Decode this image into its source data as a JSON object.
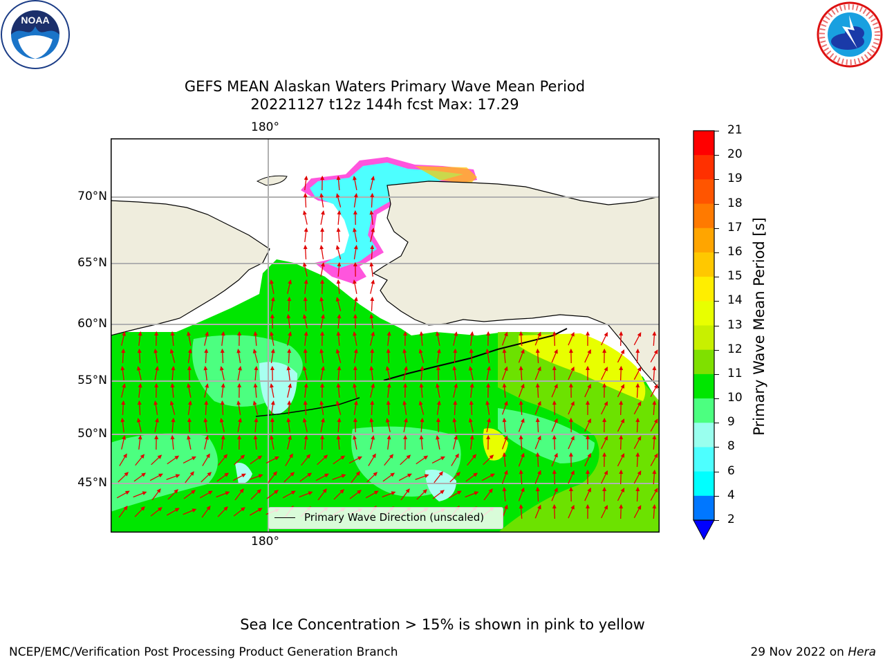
{
  "title": {
    "line1": "GEFS MEAN Alaskan Waters Primary Wave Mean Period",
    "line2": "20221127 t12z 144h fcst   Max: 17.29"
  },
  "map": {
    "lat_labels": [
      "70°N",
      "65°N",
      "60°N",
      "55°N",
      "50°N",
      "45°N"
    ],
    "lon_label_top": "180°",
    "lon_label_bottom": "180°",
    "legend_label": "Primary Wave Direction (unscaled)",
    "colors": {
      "land": "#efeddd",
      "ice_pink": "#ff55dd",
      "ice_yellow": "#ffd700",
      "arrow": "#e00000",
      "grid": "#b0b0b0"
    }
  },
  "colorbar": {
    "label": "Primary Wave Mean Period [s]",
    "ticks": [
      "21",
      "20",
      "19",
      "18",
      "17",
      "16",
      "15",
      "14",
      "13",
      "12",
      "11",
      "10",
      "9",
      "8",
      "6",
      "4",
      "2"
    ],
    "colors": [
      "#ff0000",
      "#ff3000",
      "#ff5500",
      "#ff7a00",
      "#ffa500",
      "#ffc800",
      "#ffee00",
      "#e8ff00",
      "#c8f000",
      "#7fe000",
      "#00e600",
      "#4cff80",
      "#99ffee",
      "#4dffff",
      "#00ffff",
      "#0077ff",
      "#0000ff"
    ]
  },
  "logos": {
    "left_text": "NOAA",
    "right_text": "NATIONAL WEATHER SERVICE"
  },
  "footer": {
    "ice_note": "Sea Ice Concentration > 15% is shown in pink to yellow",
    "left": "NCEP/EMC/Verification Post Processing Product Generation Branch",
    "right_prefix": "29 Nov 2022 on ",
    "right_machine": "Hera"
  }
}
